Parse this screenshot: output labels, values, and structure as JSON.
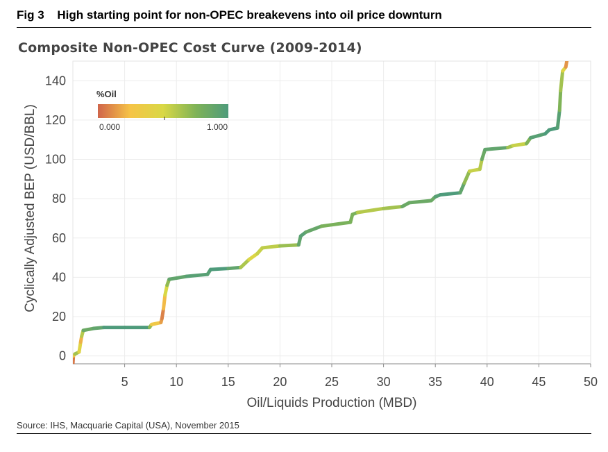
{
  "figure": {
    "number": "Fig 3",
    "title": "High starting point for non-OPEC breakevens into oil price downturn",
    "source": "Source: IHS, Macquarie Capital (USA), November 2015"
  },
  "chart_data": {
    "type": "line",
    "title": "Composite Non-OPEC Cost Curve (2009-2014)",
    "xlabel": "Oil/Liquids Production (MBD)",
    "ylabel": "Cyclically Adjusted BEP (USD/BBL)",
    "xlim": [
      0,
      50
    ],
    "ylim": [
      -4,
      150
    ],
    "xticks": [
      5,
      10,
      15,
      20,
      25,
      30,
      35,
      40,
      45,
      50
    ],
    "xtick_labels": [
      "5",
      "10",
      "15",
      "20",
      "25",
      "30",
      "35",
      "40",
      "45",
      "50"
    ],
    "yticks": [
      0,
      20,
      40,
      60,
      80,
      100,
      120,
      140
    ],
    "ytick_labels": [
      "0",
      "20",
      "40",
      "60",
      "80",
      "100",
      "120",
      "140"
    ],
    "grid": true,
    "legend": {
      "title": "%Oil",
      "placement": "top-left",
      "min_label": "0.000",
      "max_label": "1.000",
      "gradient_colors": [
        "#d0654a",
        "#f6c447",
        "#d9d845",
        "#7fb357",
        "#4e9b7b"
      ]
    },
    "series": [
      {
        "color_by": "%Oil",
        "points": [
          {
            "x": 0.0,
            "y": -4,
            "oil": 0.0
          },
          {
            "x": 0.05,
            "y": 0,
            "oil": 0.1
          },
          {
            "x": 0.2,
            "y": 1,
            "oil": 0.5
          },
          {
            "x": 0.6,
            "y": 2,
            "oil": 0.8
          },
          {
            "x": 0.75,
            "y": 7,
            "oil": 0.1
          },
          {
            "x": 0.85,
            "y": 10,
            "oil": 0.3
          },
          {
            "x": 1.0,
            "y": 13,
            "oil": 0.9
          },
          {
            "x": 2.0,
            "y": 14,
            "oil": 0.8
          },
          {
            "x": 3.0,
            "y": 14.5,
            "oil": 1.0
          },
          {
            "x": 5.0,
            "y": 14.5,
            "oil": 1.0
          },
          {
            "x": 7.4,
            "y": 14.5,
            "oil": 1.0
          },
          {
            "x": 7.6,
            "y": 16,
            "oil": 0.4
          },
          {
            "x": 8.5,
            "y": 17,
            "oil": 0.2
          },
          {
            "x": 8.6,
            "y": 19,
            "oil": 0.1
          },
          {
            "x": 8.75,
            "y": 24,
            "oil": 0.05
          },
          {
            "x": 8.9,
            "y": 31,
            "oil": 0.4
          },
          {
            "x": 9.1,
            "y": 36,
            "oil": 0.6
          },
          {
            "x": 9.3,
            "y": 39,
            "oil": 0.8
          },
          {
            "x": 11.0,
            "y": 40.5,
            "oil": 1.0
          },
          {
            "x": 13.0,
            "y": 41.5,
            "oil": 0.9
          },
          {
            "x": 13.3,
            "y": 44,
            "oil": 1.0
          },
          {
            "x": 15.0,
            "y": 44.5,
            "oil": 1.0
          },
          {
            "x": 16.2,
            "y": 45,
            "oil": 0.8
          },
          {
            "x": 17.0,
            "y": 49,
            "oil": 0.45
          },
          {
            "x": 17.8,
            "y": 52,
            "oil": 0.5
          },
          {
            "x": 18.3,
            "y": 55,
            "oil": 0.6
          },
          {
            "x": 20.0,
            "y": 56,
            "oil": 0.55
          },
          {
            "x": 21.8,
            "y": 56.5,
            "oil": 0.8
          },
          {
            "x": 22.0,
            "y": 61,
            "oil": 1.0
          },
          {
            "x": 22.5,
            "y": 63,
            "oil": 0.9
          },
          {
            "x": 24.0,
            "y": 66,
            "oil": 0.85
          },
          {
            "x": 26.8,
            "y": 68,
            "oil": 0.7
          },
          {
            "x": 27.0,
            "y": 72,
            "oil": 0.85
          },
          {
            "x": 27.5,
            "y": 73,
            "oil": 0.7
          },
          {
            "x": 30.0,
            "y": 75,
            "oil": 0.5
          },
          {
            "x": 31.8,
            "y": 76,
            "oil": 0.8
          },
          {
            "x": 32.5,
            "y": 78,
            "oil": 0.9
          },
          {
            "x": 34.6,
            "y": 79,
            "oil": 0.8
          },
          {
            "x": 35.0,
            "y": 81,
            "oil": 0.9
          },
          {
            "x": 35.5,
            "y": 82,
            "oil": 1.0
          },
          {
            "x": 37.4,
            "y": 83,
            "oil": 1.0
          },
          {
            "x": 37.8,
            "y": 88,
            "oil": 0.8
          },
          {
            "x": 38.3,
            "y": 94,
            "oil": 0.6
          },
          {
            "x": 39.3,
            "y": 95,
            "oil": 0.5
          },
          {
            "x": 39.5,
            "y": 100,
            "oil": 0.7
          },
          {
            "x": 39.8,
            "y": 105,
            "oil": 1.0
          },
          {
            "x": 42.0,
            "y": 106,
            "oil": 0.8
          },
          {
            "x": 42.5,
            "y": 107,
            "oil": 0.5
          },
          {
            "x": 43.8,
            "y": 108,
            "oil": 0.6
          },
          {
            "x": 44.2,
            "y": 111,
            "oil": 0.9
          },
          {
            "x": 45.6,
            "y": 113,
            "oil": 1.0
          },
          {
            "x": 46.0,
            "y": 115,
            "oil": 1.0
          },
          {
            "x": 46.8,
            "y": 116,
            "oil": 1.0
          },
          {
            "x": 47.0,
            "y": 125,
            "oil": 0.9
          },
          {
            "x": 47.1,
            "y": 135,
            "oil": 0.6
          },
          {
            "x": 47.3,
            "y": 145,
            "oil": 0.7
          },
          {
            "x": 47.6,
            "y": 147,
            "oil": 0.2
          },
          {
            "x": 47.7,
            "y": 150,
            "oil": 0.05
          }
        ]
      }
    ]
  }
}
